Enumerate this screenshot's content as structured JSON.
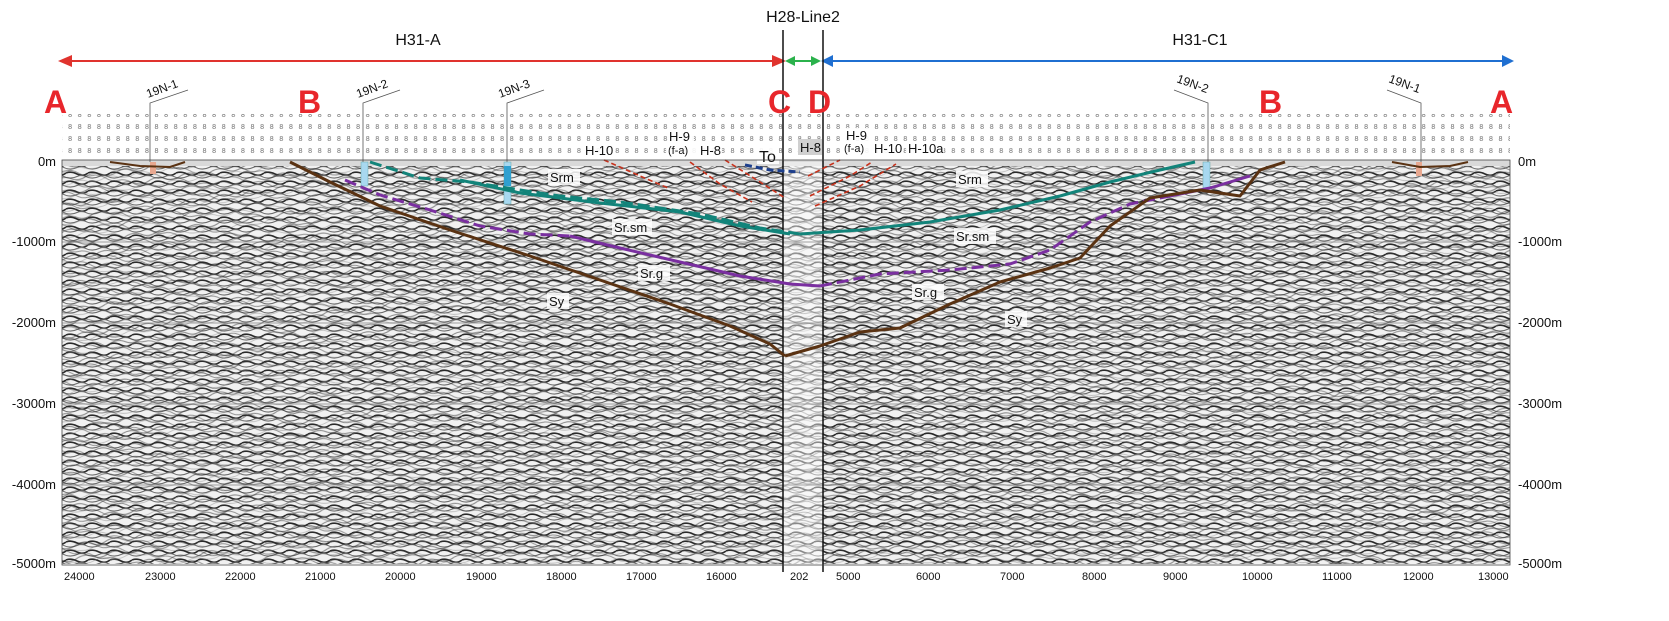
{
  "section": {
    "title_center": "H28-Line2",
    "left_segment": "H31-A",
    "right_segment": "H31-C1",
    "colors": {
      "left_arrow": "#e0332e",
      "center_arrow": "#2bb24c",
      "right_arrow": "#1f6fd1",
      "srm_top": "#12847a",
      "srsm_top": "#7a2fa0",
      "srg_top": "#5a3212",
      "fault": "#c8321c",
      "to_line": "#1d3f8c",
      "point_letters": "#e8262b"
    },
    "point_letters": [
      "A",
      "B",
      "C",
      "D",
      "B",
      "A"
    ],
    "wells": [
      "19N-1",
      "19N-2",
      "19N-3",
      "19N-2",
      "19N-1"
    ],
    "units": [
      "Srm",
      "Sr.sm",
      "Sr.g",
      "Sy",
      "Srm",
      "Sr.sm",
      "Sr.g",
      "Sy"
    ],
    "faults_left": [
      "H-10",
      "H-9",
      "(f-a)",
      "H-8"
    ],
    "to_label": "To",
    "center_fault": "H-8",
    "faults_right": [
      "H-9",
      "(f-a)",
      "H-10",
      "H-10a"
    ],
    "depth_labels": [
      "0m",
      "-1000m",
      "-2000m",
      "-3000m",
      "-4000m",
      "-5000m"
    ],
    "cdp_left": [
      "24000",
      "23000",
      "22000",
      "21000",
      "20000",
      "19000",
      "18000",
      "17000",
      "16000"
    ],
    "cdp_center": "202",
    "cdp_right": [
      "5000",
      "6000",
      "7000",
      "8000",
      "9000",
      "10000",
      "11000",
      "12000",
      "13000"
    ]
  }
}
